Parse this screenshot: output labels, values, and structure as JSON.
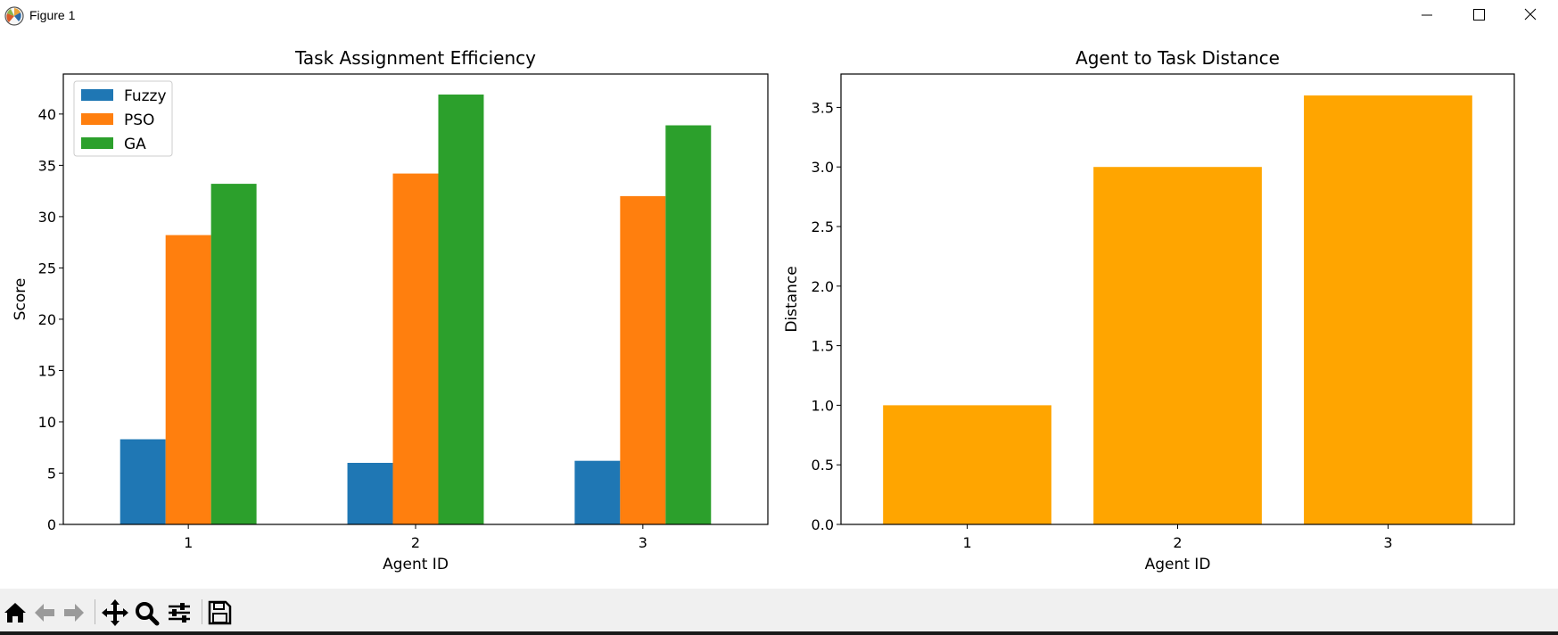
{
  "window": {
    "title": "Figure 1",
    "icon": "matplotlib-icon",
    "controls": [
      "minimize-icon",
      "maximize-icon",
      "close-icon"
    ]
  },
  "toolbar": {
    "buttons": [
      {
        "name": "home-button",
        "icon": "home-icon"
      },
      {
        "name": "back-button",
        "icon": "arrow-left-icon"
      },
      {
        "name": "forward-button",
        "icon": "arrow-right-icon"
      },
      {
        "name": "pan-button",
        "icon": "move-icon"
      },
      {
        "name": "zoom-button",
        "icon": "magnifier-icon"
      },
      {
        "name": "configure-subplots-button",
        "icon": "sliders-icon"
      },
      {
        "name": "save-button",
        "icon": "floppy-disk-icon"
      }
    ]
  },
  "chart_data": [
    {
      "type": "bar",
      "title": "Task Assignment Efficiency",
      "xlabel": "Agent ID",
      "ylabel": "Score",
      "categories": [
        "1",
        "2",
        "3"
      ],
      "series": [
        {
          "name": "Fuzzy",
          "values": [
            8.3,
            6.0,
            6.2
          ],
          "color": "#1f77b4"
        },
        {
          "name": "PSO",
          "values": [
            28.2,
            34.2,
            32.0
          ],
          "color": "#ff7f0e"
        },
        {
          "name": "GA",
          "values": [
            33.2,
            41.9,
            38.9
          ],
          "color": "#2ca02c"
        }
      ],
      "ylim": [
        0,
        43.9
      ],
      "yticks": [
        0,
        5,
        10,
        15,
        20,
        25,
        30,
        35,
        40
      ],
      "ytick_labels": [
        "0",
        "5",
        "10",
        "15",
        "20",
        "25",
        "30",
        "35",
        "40"
      ],
      "legend": "top-left",
      "grid": false
    },
    {
      "type": "bar",
      "title": "Agent to Task Distance",
      "xlabel": "Agent ID",
      "ylabel": "Distance",
      "categories": [
        "1",
        "2",
        "3"
      ],
      "series": [
        {
          "values": [
            1.0,
            3.0,
            3.6
          ],
          "color": "#ffa500"
        }
      ],
      "ylim": [
        0,
        3.78
      ],
      "yticks": [
        0,
        0.5,
        1.0,
        1.5,
        2.0,
        2.5,
        3.0,
        3.5
      ],
      "ytick_labels": [
        "0.0",
        "0.5",
        "1.0",
        "1.5",
        "2.0",
        "2.5",
        "3.0",
        "3.5"
      ],
      "grid": false
    }
  ]
}
